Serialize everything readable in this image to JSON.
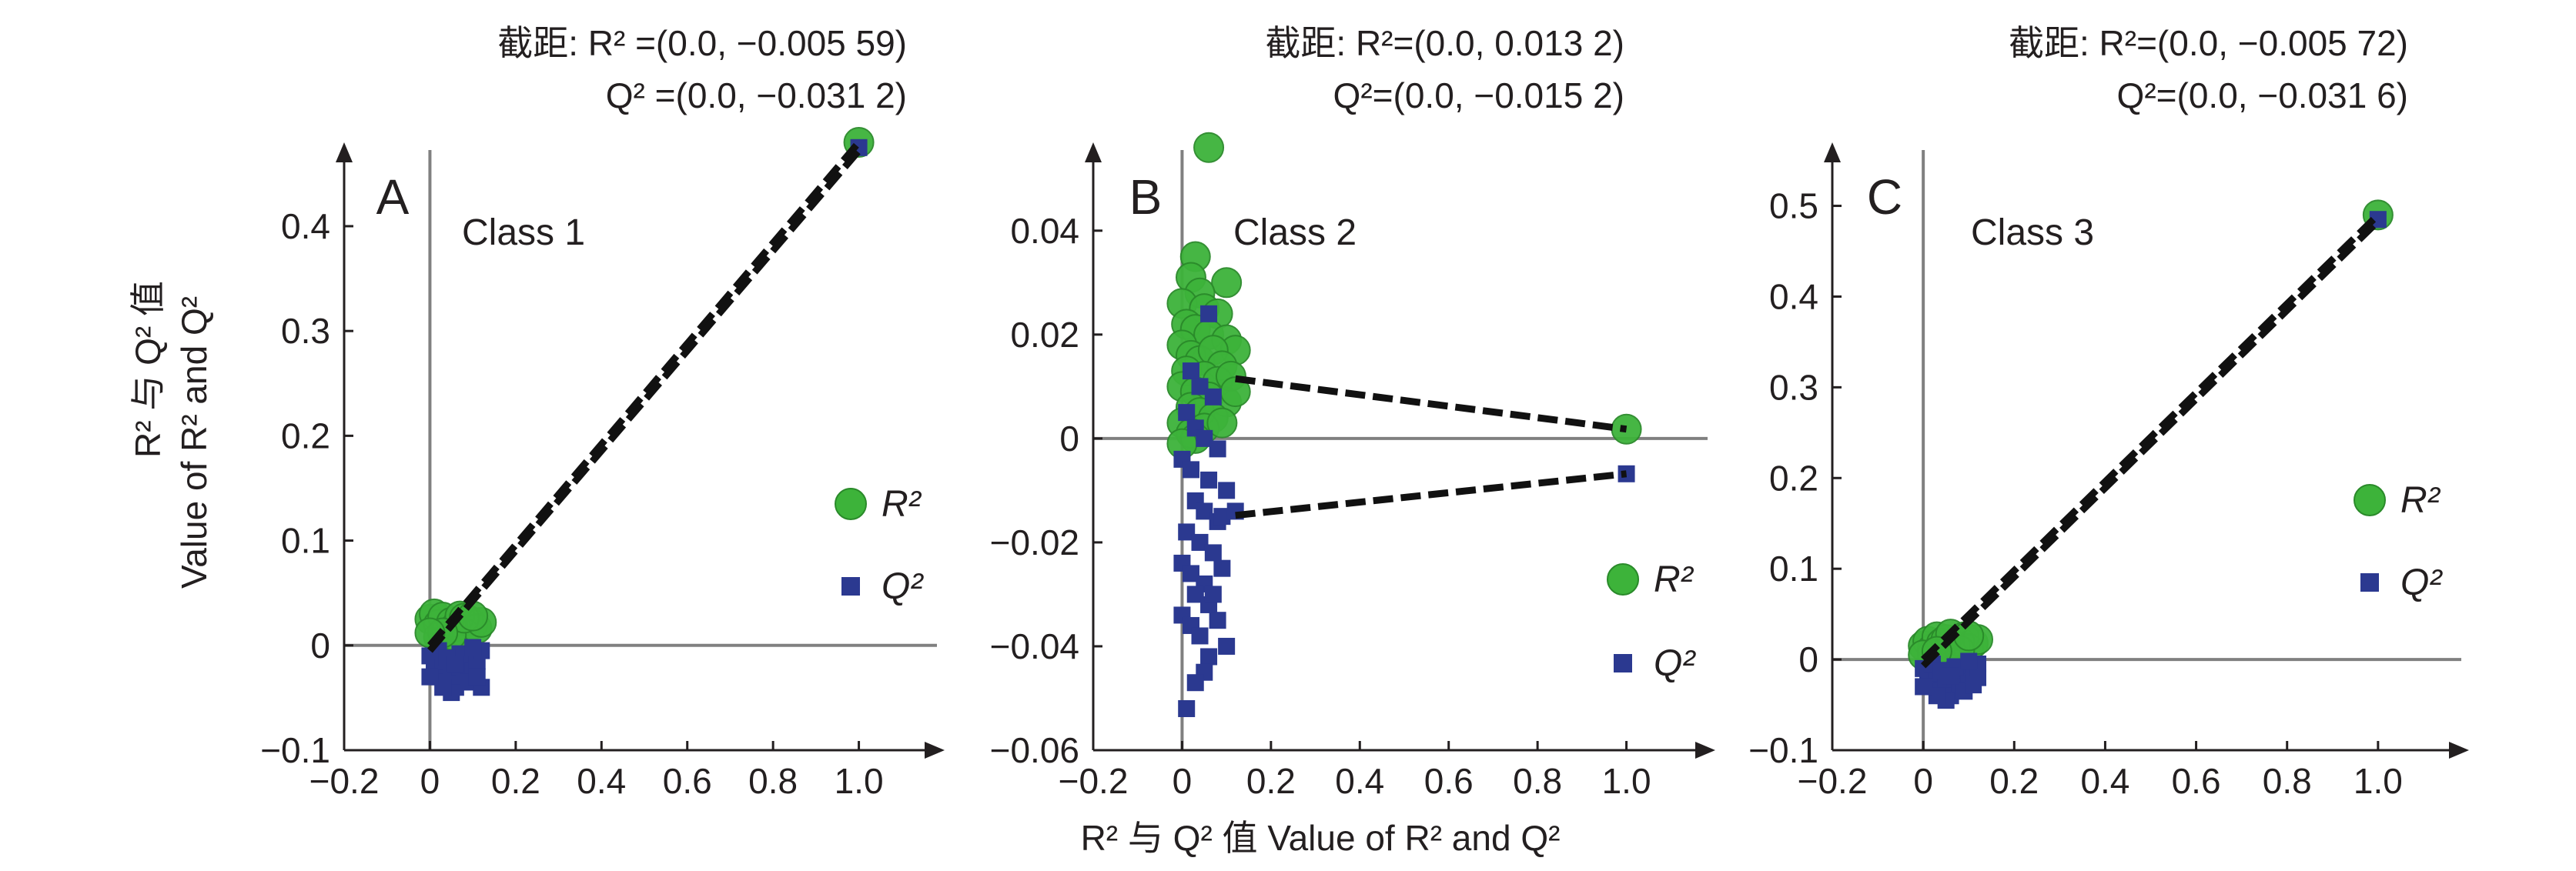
{
  "figure": {
    "x_axis_title": "R² 与 Q² 值 Value of R² and Q²",
    "y_axis_title_line1": "R² 与 Q² 值",
    "y_axis_title_line2": "Value of R² and Q²"
  },
  "legend": {
    "r2_label": "R²",
    "q2_label": "Q²"
  },
  "colors": {
    "r2": "#3db33a",
    "r2_edge": "#2a8a2a",
    "q2": "#2b3990",
    "axis": "#231f20",
    "ref_line": "#808080",
    "reg_line": "#111111"
  },
  "chart_data": [
    {
      "type": "scatter",
      "panel_letter": "A",
      "class_label": "Class 1",
      "intercept_line1": "截距: R² =(0.0, −0.005 59)",
      "intercept_line2": "Q² =(0.0, −0.031 2)",
      "intercept_r2": -0.00559,
      "intercept_q2": -0.0312,
      "xlim": [
        -0.2,
        1.2
      ],
      "ylim": [
        -0.1,
        0.48
      ],
      "x_ticks": [
        "−0.2",
        "0",
        "0.2",
        "0.4",
        "0.6",
        "0.8",
        "1.0"
      ],
      "y_ticks": [
        "−0.1",
        "0",
        "0.1",
        "0.2",
        "0.3",
        "0.4"
      ],
      "x_tick_values": [
        -0.2,
        0,
        0.2,
        0.4,
        0.6,
        0.8,
        1.0
      ],
      "y_tick_values": [
        -0.1,
        0,
        0.1,
        0.2,
        0.3,
        0.4
      ],
      "series": [
        {
          "name": "R²",
          "marker": "circle",
          "points": [
            [
              1.0,
              0.48
            ],
            [
              0.0,
              0.025
            ],
            [
              0.01,
              0.03
            ],
            [
              0.02,
              0.02
            ],
            [
              0.03,
              0.027
            ],
            [
              0.04,
              0.015
            ],
            [
              0.05,
              0.022
            ],
            [
              0.06,
              0.018
            ],
            [
              0.07,
              0.028
            ],
            [
              0.08,
              0.012
            ],
            [
              0.09,
              0.024
            ],
            [
              0.1,
              0.02
            ],
            [
              0.11,
              0.016
            ],
            [
              0.12,
              0.022
            ],
            [
              0.02,
              0.008
            ],
            [
              0.05,
              0.01
            ],
            [
              0.08,
              0.026
            ],
            [
              0.03,
              0.012
            ],
            [
              0.0,
              0.012
            ],
            [
              0.1,
              0.028
            ]
          ]
        },
        {
          "name": "Q²",
          "marker": "square",
          "points": [
            [
              1.0,
              0.475
            ],
            [
              0.0,
              -0.01
            ],
            [
              0.01,
              -0.02
            ],
            [
              0.02,
              -0.03
            ],
            [
              0.03,
              -0.015
            ],
            [
              0.04,
              -0.035
            ],
            [
              0.05,
              -0.025
            ],
            [
              0.06,
              -0.04
            ],
            [
              0.07,
              -0.02
            ],
            [
              0.08,
              -0.03
            ],
            [
              0.09,
              -0.01
            ],
            [
              0.1,
              -0.025
            ],
            [
              0.11,
              -0.015
            ],
            [
              0.12,
              -0.005
            ],
            [
              0.02,
              -0.005
            ],
            [
              0.05,
              -0.045
            ],
            [
              0.03,
              -0.04
            ],
            [
              0.07,
              -0.008
            ],
            [
              0.09,
              -0.035
            ],
            [
              0.12,
              -0.04
            ],
            [
              0.0,
              -0.03
            ],
            [
              0.04,
              -0.012
            ],
            [
              0.06,
              -0.018
            ],
            [
              0.1,
              -0.002
            ],
            [
              0.11,
              -0.03
            ]
          ]
        }
      ],
      "regression_lines": [
        {
          "from": [
            0.0,
            0.0
          ],
          "to": [
            1.0,
            0.48
          ]
        },
        {
          "from": [
            0.0,
            -0.005
          ],
          "to": [
            1.0,
            0.472
          ]
        }
      ]
    },
    {
      "type": "scatter",
      "panel_letter": "B",
      "class_label": "Class 2",
      "intercept_line1": "截距: R²=(0.0, 0.013 2)",
      "intercept_line2": "Q²=(0.0, −0.015 2)",
      "intercept_r2": 0.0132,
      "intercept_q2": -0.0152,
      "xlim": [
        -0.2,
        1.2
      ],
      "ylim": [
        -0.06,
        0.057
      ],
      "x_ticks": [
        "−0.2",
        "0",
        "0.2",
        "0.4",
        "0.6",
        "0.8",
        "1.0"
      ],
      "y_ticks": [
        "−0.06",
        "−0.04",
        "−0.02",
        "0",
        "0.02",
        "0.04"
      ],
      "x_tick_values": [
        -0.2,
        0,
        0.2,
        0.4,
        0.6,
        0.8,
        1.0
      ],
      "y_tick_values": [
        -0.06,
        -0.04,
        -0.02,
        0,
        0.02,
        0.04
      ],
      "series": [
        {
          "name": "R²",
          "marker": "circle",
          "points": [
            [
              0.06,
              0.056
            ],
            [
              0.03,
              0.035
            ],
            [
              0.1,
              0.03
            ],
            [
              0.02,
              0.031
            ],
            [
              0.04,
              0.028
            ],
            [
              0.0,
              0.026
            ],
            [
              0.05,
              0.025
            ],
            [
              0.08,
              0.024
            ],
            [
              0.01,
              0.022
            ],
            [
              0.03,
              0.021
            ],
            [
              0.06,
              0.02
            ],
            [
              0.1,
              0.019
            ],
            [
              0.12,
              0.017
            ],
            [
              0.0,
              0.018
            ],
            [
              0.02,
              0.016
            ],
            [
              0.04,
              0.015
            ],
            [
              0.07,
              0.017
            ],
            [
              0.09,
              0.014
            ],
            [
              0.01,
              0.013
            ],
            [
              0.05,
              0.012
            ],
            [
              0.08,
              0.011
            ],
            [
              0.0,
              0.01
            ],
            [
              0.03,
              0.009
            ],
            [
              0.06,
              0.008
            ],
            [
              0.1,
              0.007
            ],
            [
              0.02,
              0.006
            ],
            [
              0.04,
              0.005
            ],
            [
              0.07,
              0.004
            ],
            [
              0.0,
              0.003
            ],
            [
              0.05,
              0.002
            ],
            [
              0.09,
              0.003
            ],
            [
              0.02,
              0.001
            ],
            [
              0.03,
              0.0
            ],
            [
              0.0,
              -0.001
            ],
            [
              0.11,
              0.012
            ],
            [
              0.12,
              0.009
            ],
            [
              1.0,
              0.0018
            ]
          ]
        },
        {
          "name": "Q²",
          "marker": "square",
          "points": [
            [
              0.06,
              0.024
            ],
            [
              0.02,
              0.013
            ],
            [
              0.04,
              0.01
            ],
            [
              0.07,
              0.008
            ],
            [
              0.01,
              0.005
            ],
            [
              0.03,
              0.002
            ],
            [
              0.05,
              0.0
            ],
            [
              0.08,
              -0.002
            ],
            [
              0.0,
              -0.004
            ],
            [
              0.02,
              -0.006
            ],
            [
              0.06,
              -0.008
            ],
            [
              0.1,
              -0.01
            ],
            [
              0.03,
              -0.012
            ],
            [
              0.05,
              -0.014
            ],
            [
              0.08,
              -0.016
            ],
            [
              0.01,
              -0.018
            ],
            [
              0.04,
              -0.02
            ],
            [
              0.07,
              -0.022
            ],
            [
              0.09,
              -0.015
            ],
            [
              0.12,
              -0.014
            ],
            [
              0.0,
              -0.024
            ],
            [
              0.02,
              -0.026
            ],
            [
              0.05,
              -0.028
            ],
            [
              0.03,
              -0.03
            ],
            [
              0.06,
              -0.032
            ],
            [
              0.0,
              -0.034
            ],
            [
              0.02,
              -0.036
            ],
            [
              0.04,
              -0.038
            ],
            [
              0.08,
              -0.035
            ],
            [
              0.1,
              -0.04
            ],
            [
              0.06,
              -0.042
            ],
            [
              0.05,
              -0.045
            ],
            [
              0.03,
              -0.047
            ],
            [
              0.01,
              -0.052
            ],
            [
              0.07,
              -0.03
            ],
            [
              0.09,
              -0.025
            ],
            [
              1.0,
              -0.0068
            ]
          ]
        }
      ],
      "regression_lines": [
        {
          "from": [
            0.12,
            0.0115
          ],
          "to": [
            1.0,
            0.0018
          ]
        },
        {
          "from": [
            0.12,
            -0.0148
          ],
          "to": [
            1.0,
            -0.0068
          ]
        }
      ]
    },
    {
      "type": "scatter",
      "panel_letter": "C",
      "class_label": "Class 3",
      "intercept_line1": "截距: R²=(0.0, −0.005 72)",
      "intercept_line2": "Q²=(0.0, −0.031 6)",
      "intercept_r2": -0.00572,
      "intercept_q2": -0.0316,
      "xlim": [
        -0.2,
        1.2
      ],
      "ylim": [
        -0.1,
        0.57
      ],
      "x_ticks": [
        "−0.2",
        "0",
        "0.2",
        "0.4",
        "0.6",
        "0.8",
        "1.0"
      ],
      "y_ticks": [
        "−0.1",
        "0",
        "0.1",
        "0.2",
        "0.3",
        "0.4",
        "0.5"
      ],
      "x_tick_values": [
        -0.2,
        0,
        0.2,
        0.4,
        0.6,
        0.8,
        1.0
      ],
      "y_tick_values": [
        -0.1,
        0,
        0.1,
        0.2,
        0.3,
        0.4,
        0.5
      ],
      "series": [
        {
          "name": "R²",
          "marker": "circle",
          "points": [
            [
              1.0,
              0.49
            ],
            [
              0.0,
              0.015
            ],
            [
              0.01,
              0.02
            ],
            [
              0.02,
              0.012
            ],
            [
              0.03,
              0.025
            ],
            [
              0.04,
              0.018
            ],
            [
              0.05,
              0.022
            ],
            [
              0.06,
              0.028
            ],
            [
              0.07,
              0.015
            ],
            [
              0.08,
              0.02
            ],
            [
              0.09,
              0.025
            ],
            [
              0.1,
              0.012
            ],
            [
              0.11,
              0.018
            ],
            [
              0.12,
              0.022
            ],
            [
              0.02,
              0.006
            ],
            [
              0.05,
              0.008
            ],
            [
              0.08,
              0.01
            ],
            [
              0.0,
              0.005
            ],
            [
              0.1,
              0.026
            ],
            [
              0.03,
              0.009
            ]
          ]
        },
        {
          "name": "Q²",
          "marker": "square",
          "points": [
            [
              1.0,
              0.485
            ],
            [
              0.0,
              -0.01
            ],
            [
              0.01,
              -0.02
            ],
            [
              0.02,
              -0.03
            ],
            [
              0.03,
              -0.015
            ],
            [
              0.04,
              -0.035
            ],
            [
              0.05,
              -0.025
            ],
            [
              0.06,
              -0.04
            ],
            [
              0.07,
              -0.02
            ],
            [
              0.08,
              -0.03
            ],
            [
              0.09,
              -0.01
            ],
            [
              0.1,
              -0.025
            ],
            [
              0.11,
              -0.015
            ],
            [
              0.12,
              -0.005
            ],
            [
              0.02,
              -0.005
            ],
            [
              0.05,
              -0.045
            ],
            [
              0.03,
              -0.04
            ],
            [
              0.07,
              -0.008
            ],
            [
              0.09,
              -0.035
            ],
            [
              0.12,
              -0.02
            ],
            [
              0.0,
              -0.03
            ],
            [
              0.04,
              -0.012
            ],
            [
              0.06,
              -0.018
            ],
            [
              0.1,
              -0.002
            ],
            [
              0.11,
              -0.028
            ]
          ]
        }
      ],
      "regression_lines": [
        {
          "from": [
            0.0,
            0.0
          ],
          "to": [
            1.0,
            0.49
          ]
        },
        {
          "from": [
            0.0,
            -0.007
          ],
          "to": [
            1.0,
            0.483
          ]
        }
      ]
    }
  ]
}
